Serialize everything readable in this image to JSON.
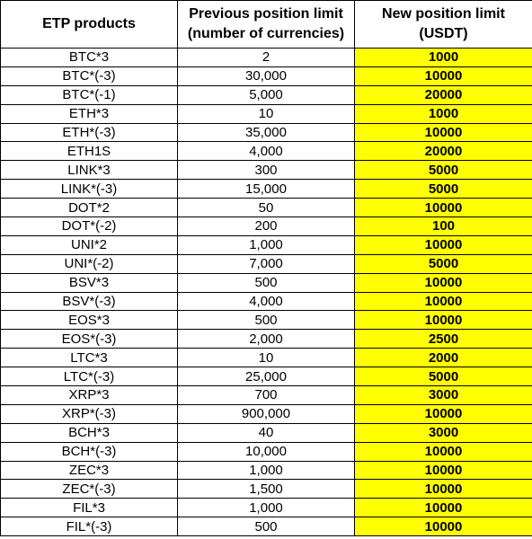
{
  "table": {
    "header": {
      "col1": "ETP products",
      "col2_line1": "Previous position limit",
      "col2_line2": "(number of currencies)",
      "col3_line1": "New position limit",
      "col3_line2": "(USDT)"
    },
    "highlight_color": "#ffff00",
    "rows": [
      {
        "product": "BTC*3",
        "previous": "2",
        "new": "1000"
      },
      {
        "product": "BTC*(-3)",
        "previous": "30,000",
        "new": "10000"
      },
      {
        "product": "BTC*(-1)",
        "previous": "5,000",
        "new": "20000"
      },
      {
        "product": "ETH*3",
        "previous": "10",
        "new": "1000"
      },
      {
        "product": "ETH*(-3)",
        "previous": "35,000",
        "new": "10000"
      },
      {
        "product": "ETH1S",
        "previous": "4,000",
        "new": "20000"
      },
      {
        "product": "LINK*3",
        "previous": "300",
        "new": "5000"
      },
      {
        "product": "LINK*(-3)",
        "previous": "15,000",
        "new": "5000"
      },
      {
        "product": "DOT*2",
        "previous": "50",
        "new": "10000"
      },
      {
        "product": "DOT*(-2)",
        "previous": "200",
        "new": "100"
      },
      {
        "product": "UNI*2",
        "previous": "1,000",
        "new": "10000"
      },
      {
        "product": "UNI*(-2)",
        "previous": "7,000",
        "new": "5000"
      },
      {
        "product": "BSV*3",
        "previous": "500",
        "new": "10000"
      },
      {
        "product": "BSV*(-3)",
        "previous": "4,000",
        "new": "10000"
      },
      {
        "product": "EOS*3",
        "previous": "500",
        "new": "10000"
      },
      {
        "product": "EOS*(-3)",
        "previous": "2,000",
        "new": "2500"
      },
      {
        "product": "LTC*3",
        "previous": "10",
        "new": "2000"
      },
      {
        "product": "LTC*(-3)",
        "previous": "25,000",
        "new": "5000"
      },
      {
        "product": "XRP*3",
        "previous": "700",
        "new": "3000"
      },
      {
        "product": "XRP*(-3)",
        "previous": "900,000",
        "new": "10000"
      },
      {
        "product": "BCH*3",
        "previous": "40",
        "new": "3000"
      },
      {
        "product": "BCH*(-3)",
        "previous": "10,000",
        "new": "10000"
      },
      {
        "product": "ZEC*3",
        "previous": "1,000",
        "new": "10000"
      },
      {
        "product": "ZEC*(-3)",
        "previous": "1,500",
        "new": "10000"
      },
      {
        "product": "FIL*3",
        "previous": "1,000",
        "new": "10000"
      },
      {
        "product": "FIL*(-3)",
        "previous": "500",
        "new": "10000"
      }
    ]
  }
}
